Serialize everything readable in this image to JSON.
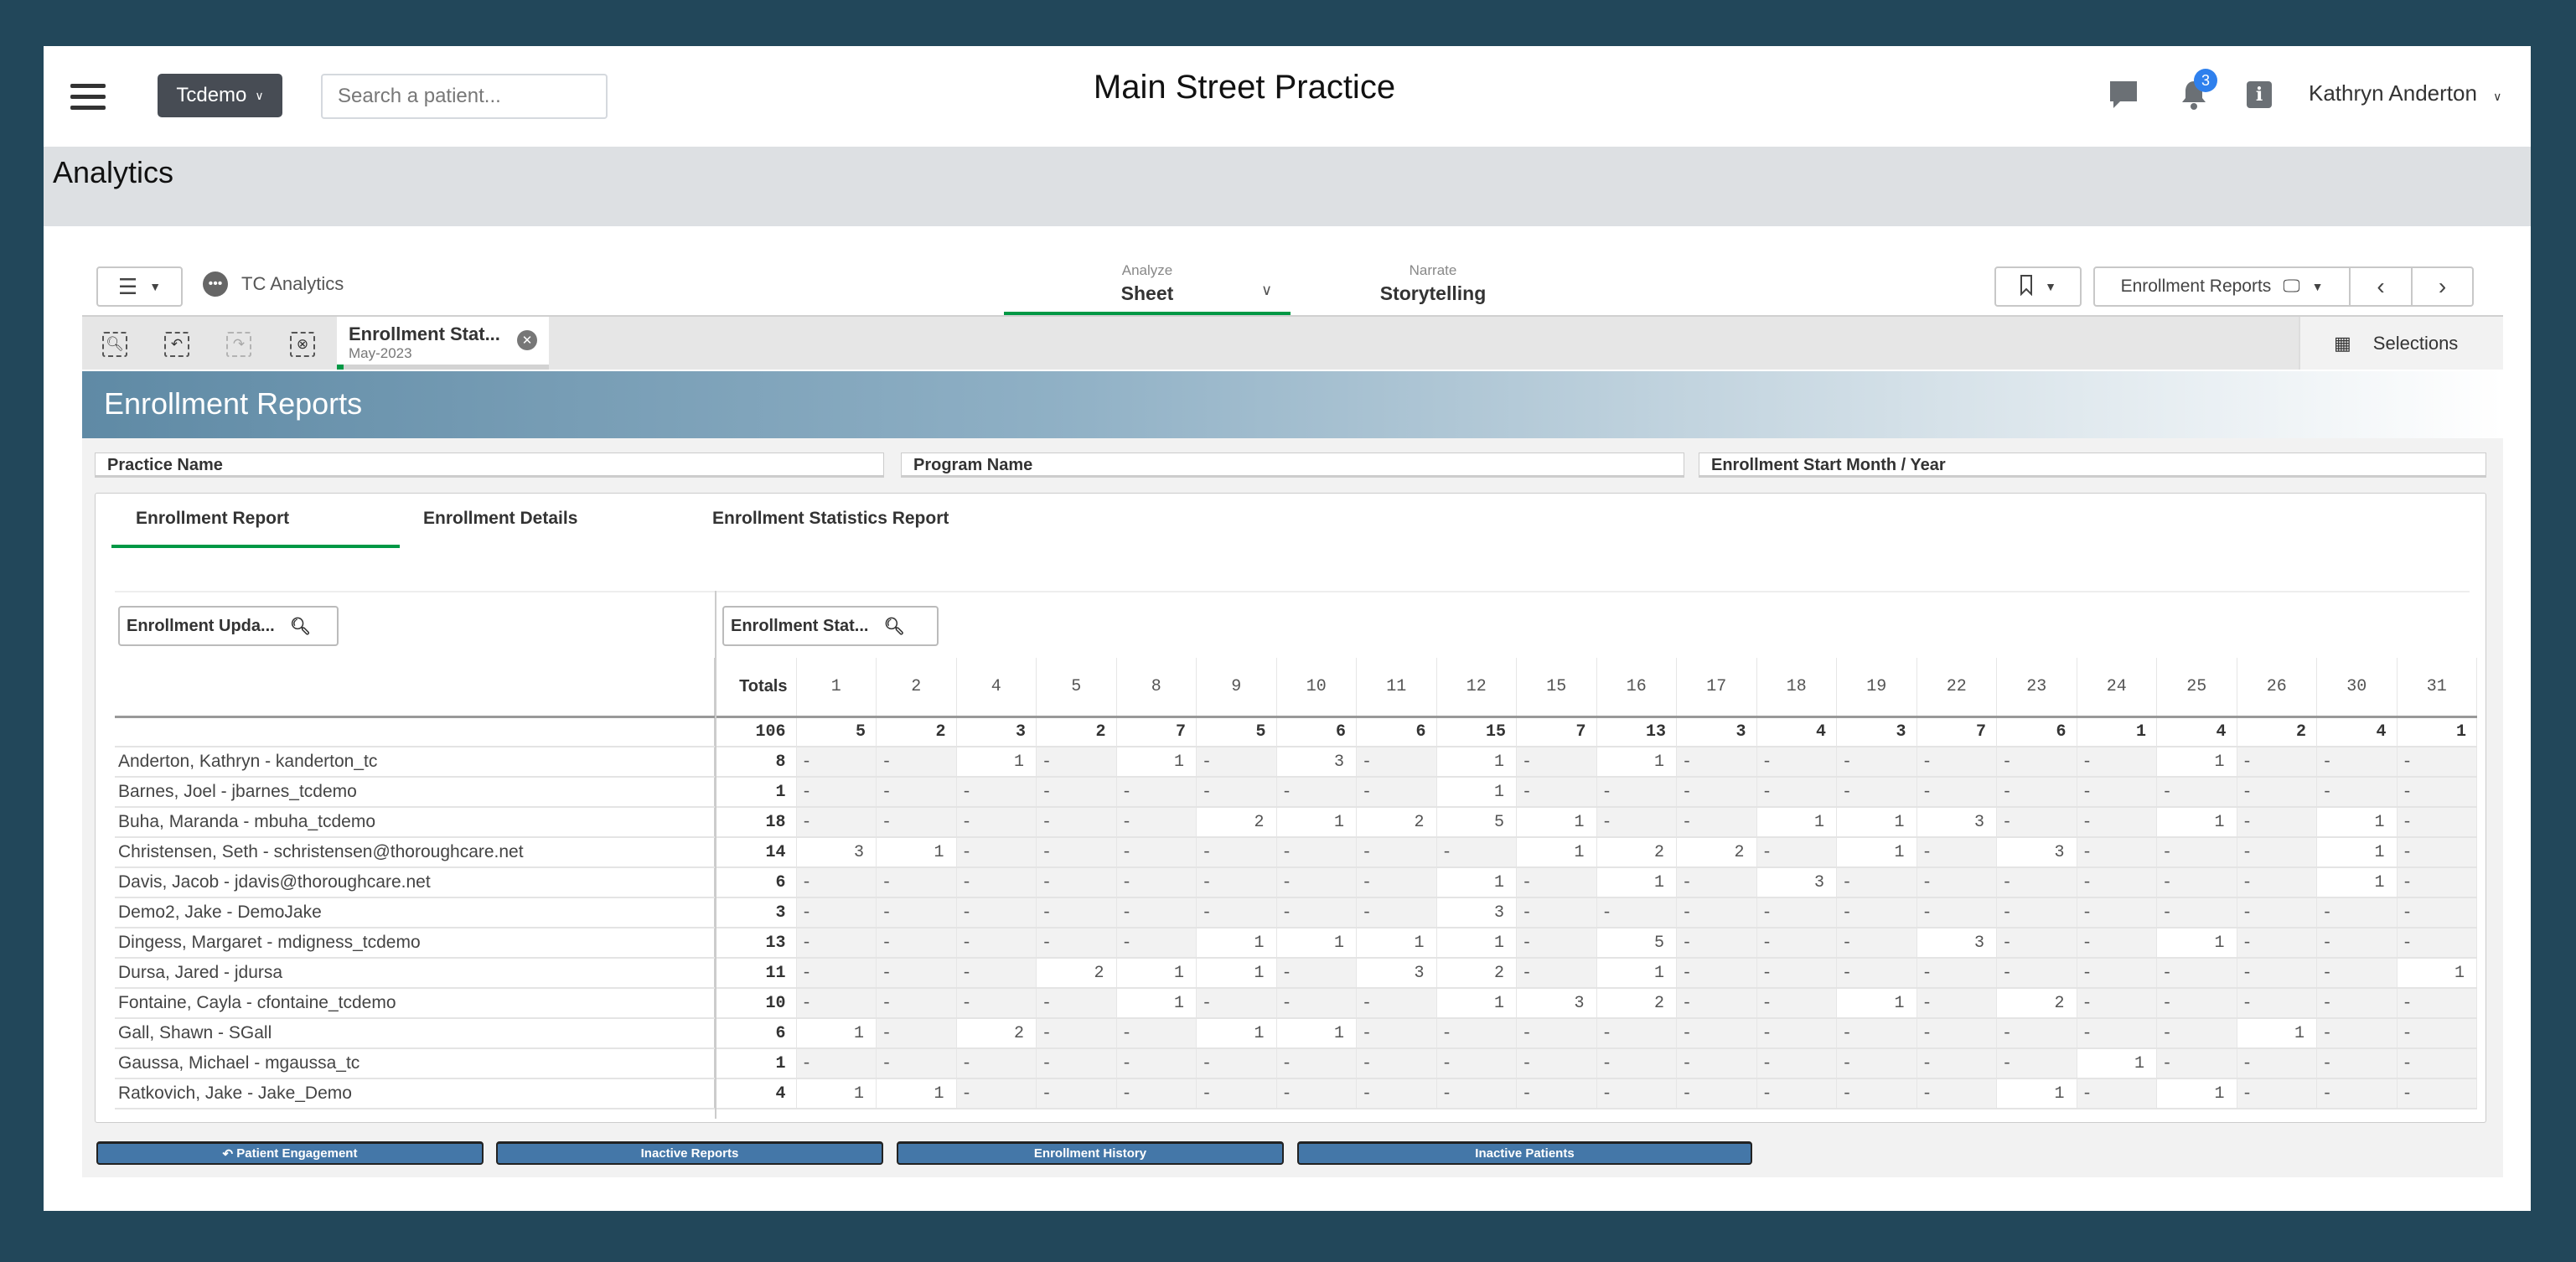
{
  "header": {
    "menu_icon": "hamburger-icon",
    "org_button": "Tcdemo",
    "search_placeholder": "Search a patient...",
    "title": "Main Street Practice",
    "notification_count": "3",
    "user_name": "Kathryn Anderton"
  },
  "page": {
    "title": "Analytics"
  },
  "qlik": {
    "app_name": "TC Analytics",
    "nav": [
      {
        "small": "Analyze",
        "label": "Sheet"
      },
      {
        "small": "Narrate",
        "label": "Storytelling"
      }
    ],
    "sheet_selector": "Enrollment Reports",
    "selection_tab": {
      "title": "Enrollment Stat...",
      "value": "May-2023"
    },
    "selections_label": "Selections",
    "banner_title": "Enrollment Reports",
    "filters": [
      "Practice Name",
      "Program Name",
      "Enrollment Start Month / Year"
    ],
    "tabs": [
      "Enrollment Report",
      "Enrollment Details",
      "Enrollment Statistics Report"
    ],
    "row_dim_search": "Enrollment Upda...",
    "col_dim_search": "Enrollment Stat...",
    "accent": "#009845"
  },
  "table": {
    "totals_label": "Totals",
    "columns": [
      "1",
      "2",
      "4",
      "5",
      "8",
      "9",
      "10",
      "11",
      "12",
      "15",
      "16",
      "17",
      "18",
      "19",
      "22",
      "23",
      "24",
      "25",
      "26",
      "30",
      "31"
    ],
    "grand_total": "106",
    "column_totals": [
      "5",
      "2",
      "3",
      "2",
      "7",
      "5",
      "6",
      "6",
      "15",
      "7",
      "13",
      "3",
      "4",
      "3",
      "7",
      "6",
      "1",
      "4",
      "2",
      "4",
      "1"
    ],
    "rows": [
      {
        "name": "Anderton, Kathryn - kanderton_tc",
        "total": "8",
        "values": [
          "-",
          "-",
          "1",
          "-",
          "1",
          "-",
          "3",
          "-",
          "1",
          "-",
          "1",
          "-",
          "-",
          "-",
          "-",
          "-",
          "-",
          "1",
          "-",
          "-",
          "-"
        ]
      },
      {
        "name": "Barnes, Joel - jbarnes_tcdemo",
        "total": "1",
        "values": [
          "-",
          "-",
          "-",
          "-",
          "-",
          "-",
          "-",
          "-",
          "1",
          "-",
          "-",
          "-",
          "-",
          "-",
          "-",
          "-",
          "-",
          "-",
          "-",
          "-",
          "-"
        ]
      },
      {
        "name": "Buha, Maranda - mbuha_tcdemo",
        "total": "18",
        "values": [
          "-",
          "-",
          "-",
          "-",
          "-",
          "2",
          "1",
          "2",
          "5",
          "1",
          "-",
          "-",
          "1",
          "1",
          "3",
          "-",
          "-",
          "1",
          "-",
          "1",
          "-"
        ]
      },
      {
        "name": "Christensen, Seth - schristensen@thoroughcare.net",
        "total": "14",
        "values": [
          "3",
          "1",
          "-",
          "-",
          "-",
          "-",
          "-",
          "-",
          "-",
          "1",
          "2",
          "2",
          "-",
          "1",
          "-",
          "3",
          "-",
          "-",
          "-",
          "1",
          "-"
        ]
      },
      {
        "name": "Davis, Jacob - jdavis@thoroughcare.net",
        "total": "6",
        "values": [
          "-",
          "-",
          "-",
          "-",
          "-",
          "-",
          "-",
          "-",
          "1",
          "-",
          "1",
          "-",
          "3",
          "-",
          "-",
          "-",
          "-",
          "-",
          "-",
          "1",
          "-"
        ]
      },
      {
        "name": "Demo2, Jake - DemoJake",
        "total": "3",
        "values": [
          "-",
          "-",
          "-",
          "-",
          "-",
          "-",
          "-",
          "-",
          "3",
          "-",
          "-",
          "-",
          "-",
          "-",
          "-",
          "-",
          "-",
          "-",
          "-",
          "-",
          "-"
        ]
      },
      {
        "name": "Dingess, Margaret - mdigness_tcdemo",
        "total": "13",
        "values": [
          "-",
          "-",
          "-",
          "-",
          "-",
          "1",
          "1",
          "1",
          "1",
          "-",
          "5",
          "-",
          "-",
          "-",
          "3",
          "-",
          "-",
          "1",
          "-",
          "-",
          "-"
        ]
      },
      {
        "name": "Dursa, Jared - jdursa",
        "total": "11",
        "values": [
          "-",
          "-",
          "-",
          "2",
          "1",
          "1",
          "-",
          "3",
          "2",
          "-",
          "1",
          "-",
          "-",
          "-",
          "-",
          "-",
          "-",
          "-",
          "-",
          "-",
          "1"
        ]
      },
      {
        "name": "Fontaine, Cayla - cfontaine_tcdemo",
        "total": "10",
        "values": [
          "-",
          "-",
          "-",
          "-",
          "1",
          "-",
          "-",
          "-",
          "1",
          "3",
          "2",
          "-",
          "-",
          "1",
          "-",
          "2",
          "-",
          "-",
          "-",
          "-",
          "-"
        ]
      },
      {
        "name": "Gall, Shawn - SGall",
        "total": "6",
        "values": [
          "1",
          "-",
          "2",
          "-",
          "-",
          "1",
          "1",
          "-",
          "-",
          "-",
          "-",
          "-",
          "-",
          "-",
          "-",
          "-",
          "-",
          "-",
          "1",
          "-",
          "-"
        ]
      },
      {
        "name": "Gaussa, Michael - mgaussa_tc",
        "total": "1",
        "values": [
          "-",
          "-",
          "-",
          "-",
          "-",
          "-",
          "-",
          "-",
          "-",
          "-",
          "-",
          "-",
          "-",
          "-",
          "-",
          "-",
          "1",
          "-",
          "-",
          "-",
          "-"
        ]
      },
      {
        "name": "Ratkovich, Jake - Jake_Demo",
        "total": "4",
        "values": [
          "1",
          "1",
          "-",
          "-",
          "-",
          "-",
          "-",
          "-",
          "-",
          "-",
          "-",
          "-",
          "-",
          "-",
          "-",
          "1",
          "-",
          "1",
          "-",
          "-",
          "-"
        ]
      }
    ]
  },
  "footer_buttons": [
    "Patient Engagement",
    "Inactive Reports",
    "Enrollment History",
    "Inactive Patients"
  ],
  "colors": {
    "frame": "#22475a",
    "button_blue": "#4477a8",
    "badge": "#2f80ed"
  }
}
